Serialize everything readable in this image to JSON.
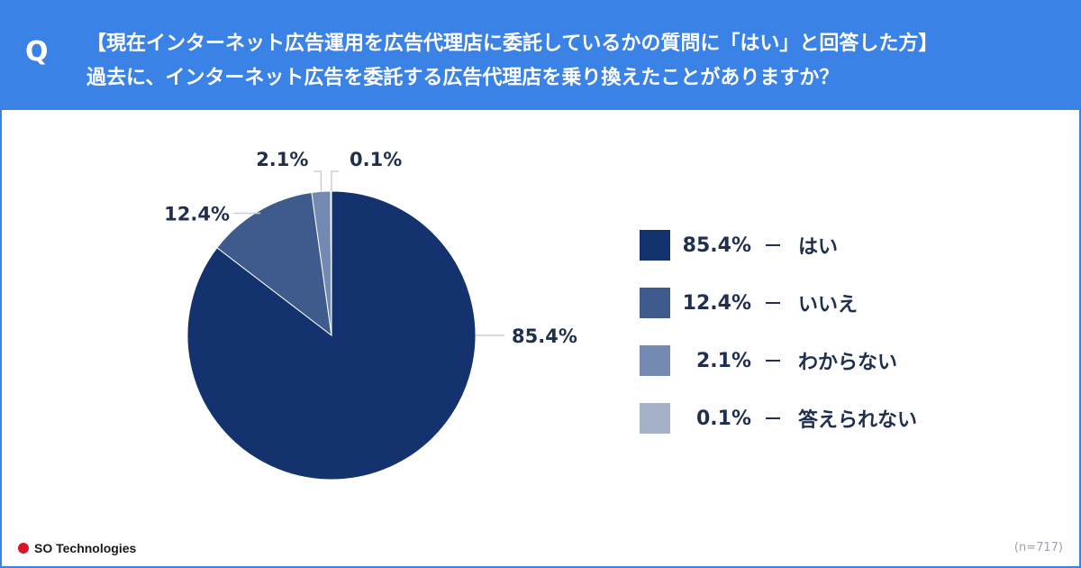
{
  "header": {
    "q_mark": "Q",
    "line1": "【現在インターネット広告運用を広告代理店に委託しているかの質問に「はい」と回答した方】",
    "line2": "過去に、インターネット広告を委託する広告代理店を乗り換えたことがありますか？"
  },
  "chart_data": {
    "type": "pie",
    "categories": [
      "はい",
      "いいえ",
      "わからない",
      "答えられない"
    ],
    "values": [
      85.4,
      12.4,
      2.1,
      0.1
    ],
    "value_labels": [
      "85.4%",
      "12.4%",
      "2.1%",
      "0.1%"
    ],
    "colors": [
      "#14336e",
      "#3f5a8c",
      "#7389b1",
      "#a4b1c9"
    ],
    "legend_position": "right"
  },
  "footer": {
    "brand": "SO Technologies",
    "sample_size": "(n=717)"
  }
}
